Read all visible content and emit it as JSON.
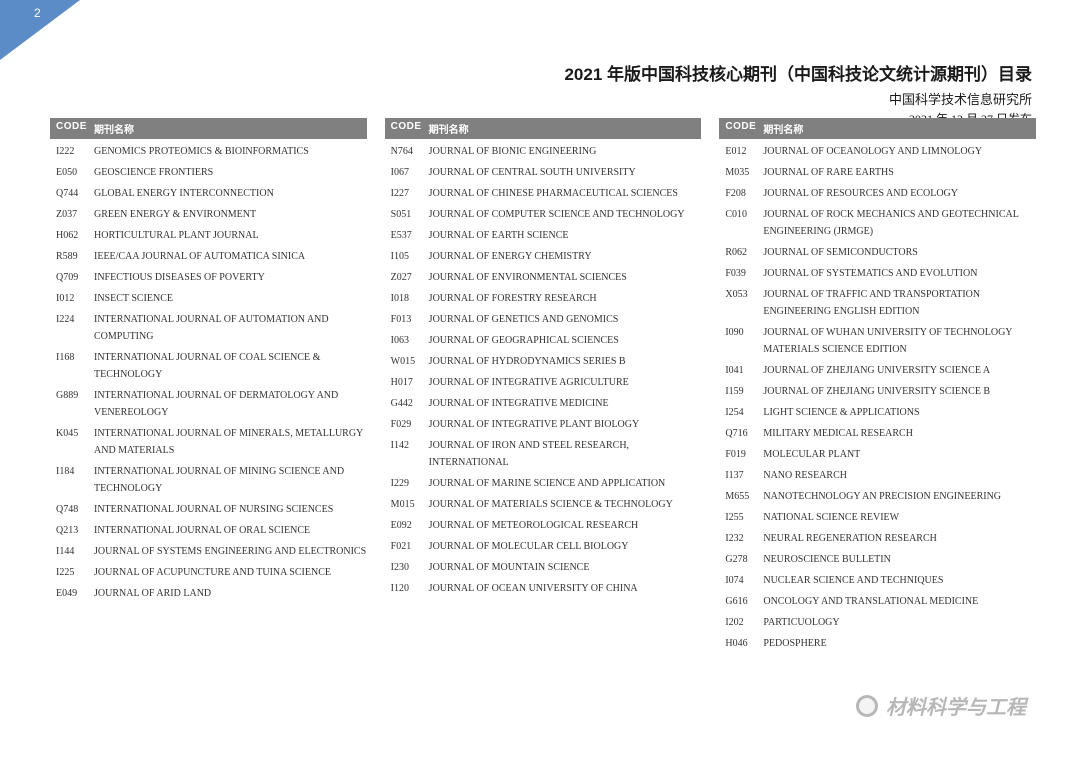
{
  "page_number": "2",
  "header": {
    "title": "2021 年版中国科技核心期刊（中国科技论文统计源期刊）目录",
    "subtitle": "中国科学技术信息研究所",
    "date": "2021 年 12 月 27 日发布"
  },
  "column_headers": {
    "code": "CODE",
    "name": "期刊名称"
  },
  "watermark_text": "材料科学与工程",
  "columns": [
    {
      "rows": [
        {
          "code": "I222",
          "name": "GENOMICS PROTEOMICS & BIOINFORMATICS"
        },
        {
          "code": "E050",
          "name": "GEOSCIENCE FRONTIERS"
        },
        {
          "code": "Q744",
          "name": "GLOBAL ENERGY INTERCONNECTION"
        },
        {
          "code": "Z037",
          "name": "GREEN ENERGY & ENVIRONMENT"
        },
        {
          "code": "H062",
          "name": "HORTICULTURAL PLANT JOURNAL"
        },
        {
          "code": "R589",
          "name": "IEEE/CAA JOURNAL OF AUTOMATICA SINICA"
        },
        {
          "code": "Q709",
          "name": "INFECTIOUS DISEASES OF POVERTY"
        },
        {
          "code": "I012",
          "name": "INSECT SCIENCE"
        },
        {
          "code": "I224",
          "name": "INTERNATIONAL JOURNAL OF AUTOMATION AND COMPUTING"
        },
        {
          "code": "I168",
          "name": "INTERNATIONAL JOURNAL OF COAL SCIENCE & TECHNOLOGY"
        },
        {
          "code": "G889",
          "name": "INTERNATIONAL JOURNAL OF DERMATOLOGY AND VENEREOLOGY"
        },
        {
          "code": "K045",
          "name": "INTERNATIONAL JOURNAL OF MINERALS, METALLURGY AND MATERIALS"
        },
        {
          "code": "I184",
          "name": "INTERNATIONAL JOURNAL OF MINING SCIENCE AND TECHNOLOGY"
        },
        {
          "code": "Q748",
          "name": "INTERNATIONAL JOURNAL OF NURSING SCIENCES"
        },
        {
          "code": "Q213",
          "name": "INTERNATIONAL JOURNAL OF ORAL SCIENCE"
        },
        {
          "code": "I144",
          "name": "JOURNAL OF  SYSTEMS ENGINEERING  AND ELECTRONICS"
        },
        {
          "code": "I225",
          "name": "JOURNAL OF ACUPUNCTURE AND TUINA SCIENCE"
        },
        {
          "code": "E049",
          "name": "JOURNAL OF ARID LAND"
        }
      ]
    },
    {
      "rows": [
        {
          "code": "N764",
          "name": "JOURNAL OF BIONIC ENGINEERING"
        },
        {
          "code": "I067",
          "name": "JOURNAL OF CENTRAL SOUTH UNIVERSITY"
        },
        {
          "code": "I227",
          "name": "JOURNAL OF CHINESE PHARMACEUTICAL SCIENCES"
        },
        {
          "code": "S051",
          "name": "JOURNAL OF COMPUTER SCIENCE AND TECHNOLOGY"
        },
        {
          "code": "E537",
          "name": "JOURNAL OF EARTH SCIENCE"
        },
        {
          "code": "I105",
          "name": "JOURNAL OF ENERGY CHEMISTRY"
        },
        {
          "code": "Z027",
          "name": "JOURNAL OF ENVIRONMENTAL SCIENCES"
        },
        {
          "code": "I018",
          "name": "JOURNAL OF FORESTRY RESEARCH"
        },
        {
          "code": "F013",
          "name": "JOURNAL OF GENETICS AND GENOMICS"
        },
        {
          "code": "I063",
          "name": "JOURNAL OF GEOGRAPHICAL SCIENCES"
        },
        {
          "code": "W015",
          "name": "JOURNAL OF HYDRODYNAMICS SERIES B"
        },
        {
          "code": "H017",
          "name": "JOURNAL OF INTEGRATIVE AGRICULTURE"
        },
        {
          "code": "G442",
          "name": "JOURNAL OF INTEGRATIVE MEDICINE"
        },
        {
          "code": "F029",
          "name": "JOURNAL OF INTEGRATIVE PLANT BIOLOGY"
        },
        {
          "code": "I142",
          "name": "JOURNAL OF IRON AND STEEL RESEARCH, INTERNATIONAL"
        },
        {
          "code": "I229",
          "name": "JOURNAL OF MARINE SCIENCE AND APPLICATION"
        },
        {
          "code": "M015",
          "name": "JOURNAL OF MATERIALS SCIENCE & TECHNOLOGY"
        },
        {
          "code": "E092",
          "name": "JOURNAL OF METEOROLOGICAL RESEARCH"
        },
        {
          "code": "F021",
          "name": "JOURNAL OF MOLECULAR CELL BIOLOGY"
        },
        {
          "code": "I230",
          "name": "JOURNAL OF MOUNTAIN SCIENCE"
        },
        {
          "code": "I120",
          "name": "JOURNAL OF OCEAN UNIVERSITY OF CHINA"
        }
      ]
    },
    {
      "rows": [
        {
          "code": "E012",
          "name": "JOURNAL OF OCEANOLOGY AND LIMNOLOGY"
        },
        {
          "code": "M035",
          "name": "JOURNAL OF RARE EARTHS"
        },
        {
          "code": "F208",
          "name": "JOURNAL OF RESOURCES AND ECOLOGY"
        },
        {
          "code": "C010",
          "name": "JOURNAL OF ROCK MECHANICS AND GEOTECHNICAL ENGINEERING (JRMGE)"
        },
        {
          "code": "R062",
          "name": "JOURNAL OF SEMICONDUCTORS"
        },
        {
          "code": "F039",
          "name": "JOURNAL OF SYSTEMATICS AND EVOLUTION"
        },
        {
          "code": "X053",
          "name": "JOURNAL OF TRAFFIC AND TRANSPORTATION ENGINEERING ENGLISH EDITION"
        },
        {
          "code": "I090",
          "name": "JOURNAL OF WUHAN UNIVERSITY OF TECHNOLOGY MATERIALS SCIENCE EDITION"
        },
        {
          "code": "I041",
          "name": "JOURNAL OF ZHEJIANG UNIVERSITY SCIENCE A"
        },
        {
          "code": "I159",
          "name": "JOURNAL OF ZHEJIANG UNIVERSITY SCIENCE B"
        },
        {
          "code": "I254",
          "name": "LIGHT SCIENCE & APPLICATIONS"
        },
        {
          "code": "Q716",
          "name": "MILITARY MEDICAL RESEARCH"
        },
        {
          "code": "F019",
          "name": "MOLECULAR PLANT"
        },
        {
          "code": "I137",
          "name": "NANO RESEARCH"
        },
        {
          "code": "M655",
          "name": "NANOTECHNOLOGY AN PRECISION ENGINEERING"
        },
        {
          "code": "I255",
          "name": "NATIONAL SCIENCE REVIEW"
        },
        {
          "code": "I232",
          "name": "NEURAL REGENERATION RESEARCH"
        },
        {
          "code": "G278",
          "name": "NEUROSCIENCE BULLETIN"
        },
        {
          "code": "I074",
          "name": "NUCLEAR SCIENCE AND TECHNIQUES"
        },
        {
          "code": "G616",
          "name": "ONCOLOGY AND TRANSLATIONAL MEDICINE"
        },
        {
          "code": "I202",
          "name": "PARTICUOLOGY"
        },
        {
          "code": "H046",
          "name": "PEDOSPHERE"
        }
      ]
    }
  ],
  "colors": {
    "corner": "#5b8cc7",
    "header_bg": "#808080",
    "header_fg": "#ffffff",
    "text": "#333333"
  }
}
